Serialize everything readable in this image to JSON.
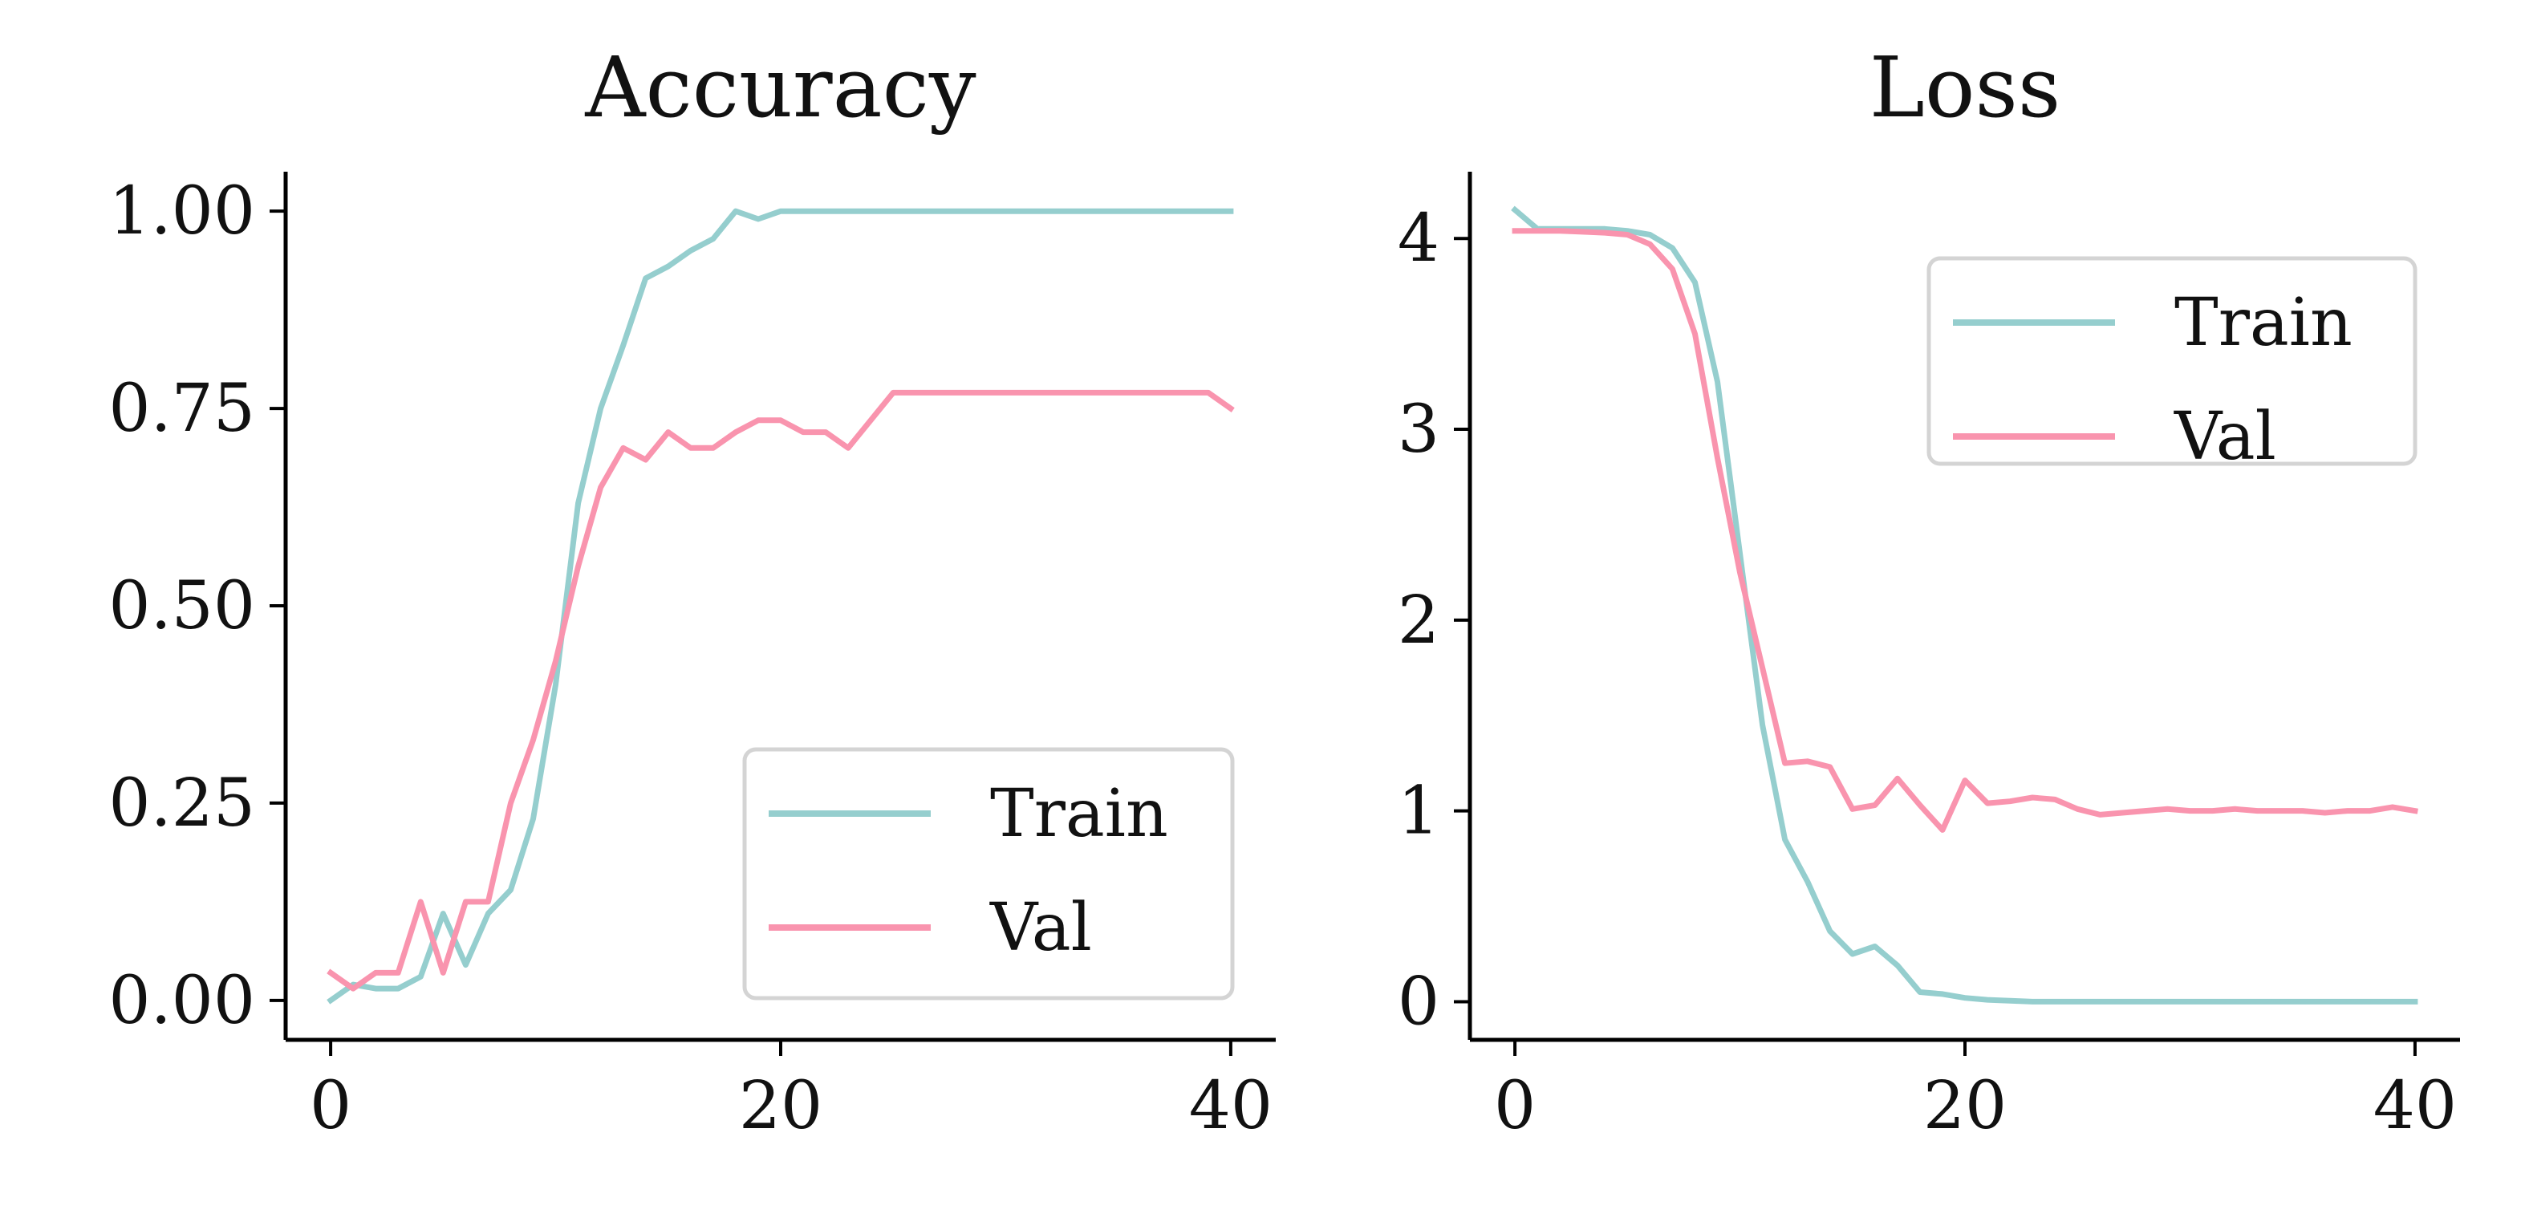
{
  "colors": {
    "train": "#95CECE",
    "val": "#F994AE",
    "axis": "#000000",
    "legend_border": "#D4D4D4"
  },
  "chart_data": [
    {
      "type": "line",
      "title": "Accuracy",
      "xlabel": "",
      "ylabel": "",
      "xlim": [
        -2,
        42
      ],
      "ylim": [
        -0.05,
        1.05
      ],
      "xticks": [
        0,
        20,
        40
      ],
      "xtick_labels": [
        "0",
        "20",
        "40"
      ],
      "yticks": [
        0,
        0.25,
        0.5,
        0.75,
        1.0
      ],
      "ytick_labels": [
        "0.00",
        "0.25",
        "0.50",
        "0.75",
        "1.00"
      ],
      "grid": false,
      "legend": {
        "position": "lower-right"
      },
      "x": [
        0,
        1,
        2,
        3,
        4,
        5,
        6,
        7,
        8,
        9,
        10,
        11,
        12,
        13,
        14,
        15,
        16,
        17,
        18,
        19,
        20,
        21,
        22,
        23,
        24,
        25,
        26,
        27,
        28,
        29,
        30,
        31,
        32,
        33,
        34,
        35,
        36,
        37,
        38,
        39,
        40
      ],
      "series": [
        {
          "name": "Train",
          "color": "#95CECE",
          "values": [
            0.0,
            0.02,
            0.015,
            0.015,
            0.03,
            0.11,
            0.045,
            0.11,
            0.14,
            0.23,
            0.4,
            0.63,
            0.75,
            0.83,
            0.915,
            0.93,
            0.95,
            0.965,
            1.0,
            0.99,
            1.0,
            1.0,
            1.0,
            1.0,
            1.0,
            1.0,
            1.0,
            1.0,
            1.0,
            1.0,
            1.0,
            1.0,
            1.0,
            1.0,
            1.0,
            1.0,
            1.0,
            1.0,
            1.0,
            1.0,
            1.0
          ]
        },
        {
          "name": "Val",
          "color": "#F994AE",
          "values": [
            0.035,
            0.015,
            0.035,
            0.035,
            0.125,
            0.035,
            0.125,
            0.125,
            0.25,
            0.33,
            0.43,
            0.55,
            0.65,
            0.7,
            0.685,
            0.72,
            0.7,
            0.7,
            0.72,
            0.735,
            0.735,
            0.72,
            0.72,
            0.7,
            0.735,
            0.77,
            0.77,
            0.77,
            0.77,
            0.77,
            0.77,
            0.77,
            0.77,
            0.77,
            0.77,
            0.77,
            0.77,
            0.77,
            0.77,
            0.77,
            0.75
          ]
        }
      ]
    },
    {
      "type": "line",
      "title": "Loss",
      "xlabel": "",
      "ylabel": "",
      "xlim": [
        -2,
        42
      ],
      "ylim": [
        -0.2,
        4.35
      ],
      "xticks": [
        0,
        20,
        40
      ],
      "xtick_labels": [
        "0",
        "20",
        "40"
      ],
      "yticks": [
        0,
        1,
        2,
        3,
        4
      ],
      "ytick_labels": [
        "0",
        "1",
        "2",
        "3",
        "4"
      ],
      "grid": false,
      "legend": {
        "position": "upper-right"
      },
      "x": [
        0,
        1,
        2,
        3,
        4,
        5,
        6,
        7,
        8,
        9,
        10,
        11,
        12,
        13,
        14,
        15,
        16,
        17,
        18,
        19,
        20,
        21,
        22,
        23,
        24,
        25,
        26,
        27,
        28,
        29,
        30,
        31,
        32,
        33,
        34,
        35,
        36,
        37,
        38,
        39,
        40
      ],
      "series": [
        {
          "name": "Train",
          "color": "#95CECE",
          "values": [
            4.15,
            4.05,
            4.05,
            4.05,
            4.05,
            4.04,
            4.02,
            3.95,
            3.77,
            3.25,
            2.35,
            1.45,
            0.85,
            0.63,
            0.37,
            0.25,
            0.29,
            0.19,
            0.05,
            0.04,
            0.02,
            0.01,
            0.005,
            0.0,
            0.0,
            0.0,
            0.0,
            0.0,
            0.0,
            0.0,
            0.0,
            0.0,
            0.0,
            0.0,
            0.0,
            0.0,
            0.0,
            0.0,
            0.0,
            0.0,
            0.0
          ]
        },
        {
          "name": "Val",
          "color": "#F994AE",
          "values": [
            4.04,
            4.04,
            4.04,
            4.035,
            4.03,
            4.02,
            3.97,
            3.84,
            3.5,
            2.85,
            2.25,
            1.75,
            1.25,
            1.26,
            1.23,
            1.01,
            1.03,
            1.17,
            1.03,
            0.9,
            1.16,
            1.04,
            1.05,
            1.07,
            1.06,
            1.01,
            0.98,
            0.99,
            1.0,
            1.01,
            1.0,
            1.0,
            1.01,
            1.0,
            1.0,
            1.0,
            0.99,
            1.0,
            1.0,
            1.02,
            1.0
          ]
        }
      ]
    }
  ]
}
